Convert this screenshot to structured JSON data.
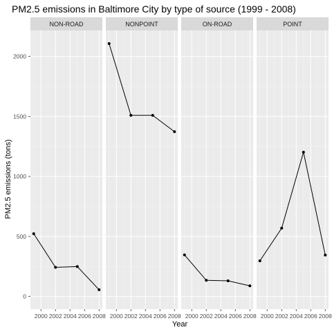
{
  "chart_data": {
    "type": "line",
    "title": "PM2.5 emissions in Baltimore City by type of source (1999 - 2008)",
    "xlabel": "Year",
    "ylabel": "PM2.5 emissions (tons)",
    "x": [
      1999,
      2002,
      2005,
      2008
    ],
    "xlim": [
      1998.55,
      2008.45
    ],
    "ylim": [
      -106,
      2217
    ],
    "x_ticks": [
      2000,
      2002,
      2004,
      2006,
      2008
    ],
    "y_ticks": [
      0,
      500,
      1000,
      1500,
      2000
    ],
    "grid": true,
    "legend": "none",
    "panels": [
      {
        "name": "NON-ROAD",
        "values": [
          522.9,
          242.7,
          248.9,
          55.8
        ]
      },
      {
        "name": "NONPOINT",
        "values": [
          2107.6,
          1509.5,
          1509.5,
          1373.2
        ]
      },
      {
        "name": "ON-ROAD",
        "values": [
          346.8,
          134.3,
          130.4,
          88.3
        ]
      },
      {
        "name": "POINT",
        "values": [
          296.8,
          569.3,
          1202.5,
          344.98
        ]
      }
    ],
    "colors": {
      "panel_background": "#ebebeb",
      "grid_major": "#ffffff",
      "grid_minor": "#f5f5f5",
      "strip_background": "#d9d9d9",
      "line": "#000000"
    }
  }
}
